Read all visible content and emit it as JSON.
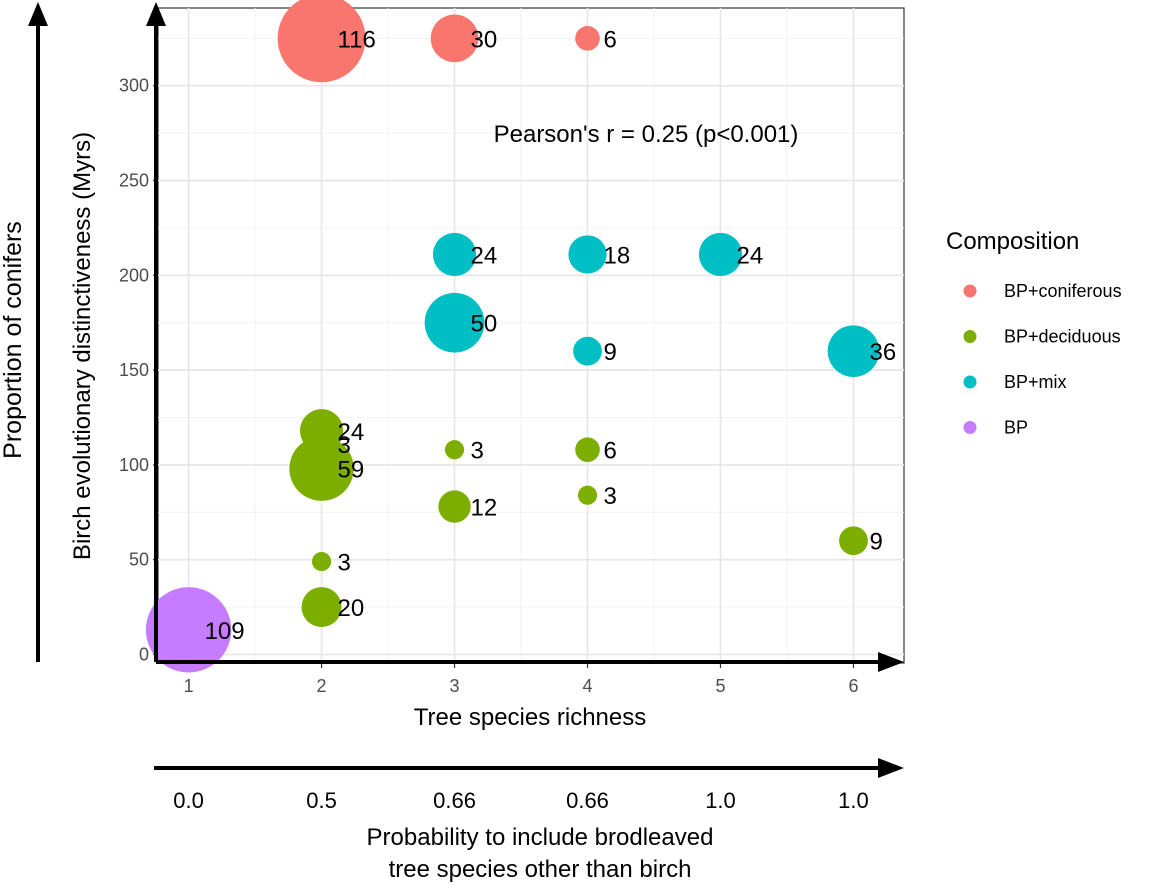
{
  "chart_data": {
    "type": "scatter",
    "xlabel": "Tree species richness",
    "ylabel": "Birch evolutionary distinctiveness (Myrs)",
    "outer_ylabel": "Proportion of conifers",
    "second_xlabel": [
      "Probability to include brodleaved",
      "tree species other than birch"
    ],
    "second_x_ticks": [
      "0.0",
      "0.5",
      "0.66",
      "0.66",
      "1.0",
      "1.0"
    ],
    "x_ticks": [
      1,
      2,
      3,
      4,
      5,
      6
    ],
    "y_ticks": [
      0,
      50,
      100,
      150,
      200,
      250,
      300
    ],
    "xlim": [
      0.77,
      6.38
    ],
    "ylim": [
      -4.5,
      341
    ],
    "grid": true,
    "annotation": "Pearson's r = 0.25 (p<0.001)",
    "legend": {
      "title": "Composition",
      "placement": "right",
      "entries": [
        {
          "name": "BP+coniferous",
          "color": "#F8766D"
        },
        {
          "name": "BP+deciduous",
          "color": "#7CAE00"
        },
        {
          "name": "BP+mix",
          "color": "#00BFC4"
        },
        {
          "name": "BP",
          "color": "#C77CFF"
        }
      ]
    },
    "points": [
      {
        "group": "BP+coniferous",
        "x": 2,
        "y": 325,
        "n": 116,
        "label": "116"
      },
      {
        "group": "BP+coniferous",
        "x": 3,
        "y": 325,
        "n": 30,
        "label": "30"
      },
      {
        "group": "BP+coniferous",
        "x": 4,
        "y": 325,
        "n": 6,
        "label": "6"
      },
      {
        "group": "BP+mix",
        "x": 3,
        "y": 211,
        "n": 24,
        "label": "24"
      },
      {
        "group": "BP+mix",
        "x": 4,
        "y": 211,
        "n": 18,
        "label": "18"
      },
      {
        "group": "BP+mix",
        "x": 5,
        "y": 211,
        "n": 24,
        "label": "24"
      },
      {
        "group": "BP+mix",
        "x": 3,
        "y": 175,
        "n": 50,
        "label": "50"
      },
      {
        "group": "BP+mix",
        "x": 4,
        "y": 160,
        "n": 9,
        "label": "9"
      },
      {
        "group": "BP+mix",
        "x": 6,
        "y": 160,
        "n": 36,
        "label": "36"
      },
      {
        "group": "BP+deciduous",
        "x": 2,
        "y": 118,
        "n": 24,
        "label": "24"
      },
      {
        "group": "BP+deciduous",
        "x": 2,
        "y": 111,
        "n": 3,
        "label": "3"
      },
      {
        "group": "BP+deciduous",
        "x": 2,
        "y": 98,
        "n": 59,
        "label": "59"
      },
      {
        "group": "BP+deciduous",
        "x": 3,
        "y": 108,
        "n": 3,
        "label": "3"
      },
      {
        "group": "BP+deciduous",
        "x": 4,
        "y": 108,
        "n": 6,
        "label": "6"
      },
      {
        "group": "BP+deciduous",
        "x": 4,
        "y": 84,
        "n": 3,
        "label": "3"
      },
      {
        "group": "BP+deciduous",
        "x": 3,
        "y": 78,
        "n": 12,
        "label": "12"
      },
      {
        "group": "BP+deciduous",
        "x": 6,
        "y": 60,
        "n": 9,
        "label": "9"
      },
      {
        "group": "BP+deciduous",
        "x": 2,
        "y": 49,
        "n": 3,
        "label": "3"
      },
      {
        "group": "BP+deciduous",
        "x": 2,
        "y": 25,
        "n": 20,
        "label": "20"
      },
      {
        "group": "BP",
        "x": 1,
        "y": 13,
        "n": 109,
        "label": "109"
      }
    ]
  }
}
